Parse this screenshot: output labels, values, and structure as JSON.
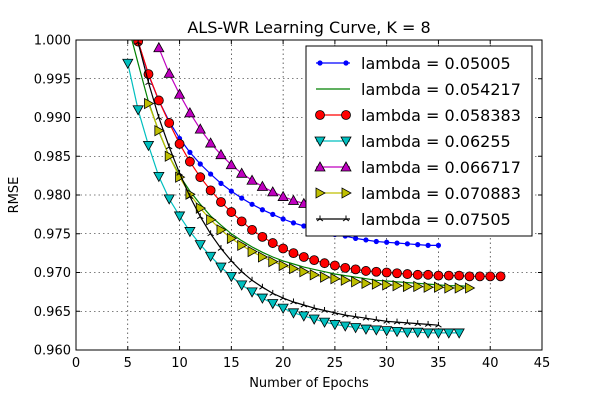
{
  "chart_data": {
    "type": "line",
    "title": "ALS-WR Learning Curve,  K = 8",
    "xlabel": "Number of Epochs",
    "ylabel": "RMSE",
    "xlim": [
      0,
      45
    ],
    "ylim": [
      0.96,
      1.0
    ],
    "xticks": [
      "0",
      "5",
      "10",
      "15",
      "20",
      "25",
      "30",
      "35",
      "40",
      "45"
    ],
    "yticks": [
      "0.960",
      "0.965",
      "0.970",
      "0.975",
      "0.980",
      "0.985",
      "0.990",
      "0.995",
      "1.000"
    ],
    "grid": true,
    "legend_position": "top-right",
    "series": [
      {
        "name": "lambda = 0.05005",
        "color": "#0000ff",
        "marker": "dot",
        "x": [
          6,
          7,
          8,
          9,
          10,
          11,
          12,
          13,
          14,
          15,
          16,
          17,
          18,
          19,
          20,
          21,
          22,
          23,
          24,
          25,
          26,
          27,
          28,
          29,
          30,
          31,
          32,
          33,
          34,
          35
        ],
        "y": [
          0.9998,
          0.9955,
          0.9922,
          0.9895,
          0.9873,
          0.9855,
          0.984,
          0.9827,
          0.9815,
          0.9805,
          0.9796,
          0.9788,
          0.9781,
          0.9775,
          0.9769,
          0.9764,
          0.976,
          0.9756,
          0.9752,
          0.9749,
          0.9747,
          0.9744,
          0.9742,
          0.974,
          0.9739,
          0.9738,
          0.9737,
          0.9736,
          0.9735,
          0.9735
        ]
      },
      {
        "name": "lambda = 0.054217",
        "color": "#008000",
        "marker": "none",
        "x": [
          5,
          6,
          7,
          8,
          9,
          10,
          11,
          12,
          13,
          14,
          15,
          16,
          17,
          18,
          19,
          20,
          21,
          22,
          23,
          24,
          25,
          26,
          27,
          28,
          29,
          30,
          31,
          32,
          33,
          34,
          35,
          36,
          37,
          38
        ],
        "y": [
          1.002,
          0.997,
          0.992,
          0.9882,
          0.985,
          0.9825,
          0.9805,
          0.9788,
          0.9773,
          0.9761,
          0.975,
          0.9741,
          0.9733,
          0.9726,
          0.972,
          0.9715,
          0.9711,
          0.9707,
          0.9704,
          0.9701,
          0.9698,
          0.9696,
          0.9694,
          0.9692,
          0.969,
          0.9689,
          0.9688,
          0.9687,
          0.9686,
          0.9685,
          0.9684,
          0.9683,
          0.9683,
          0.9682
        ]
      },
      {
        "name": "lambda = 0.058383",
        "color": "#ff0000",
        "marker": "circle",
        "x": [
          6,
          7,
          8,
          9,
          10,
          11,
          12,
          13,
          14,
          15,
          16,
          17,
          18,
          19,
          20,
          21,
          22,
          23,
          24,
          25,
          26,
          27,
          28,
          29,
          30,
          31,
          32,
          33,
          34,
          35,
          36,
          37,
          38,
          39,
          40,
          41
        ],
        "y": [
          0.9998,
          0.9956,
          0.9922,
          0.9893,
          0.9866,
          0.9843,
          0.9823,
          0.9806,
          0.9791,
          0.9778,
          0.9766,
          0.9755,
          0.9746,
          0.9738,
          0.9731,
          0.9725,
          0.972,
          0.9716,
          0.9712,
          0.9709,
          0.9706,
          0.9704,
          0.9702,
          0.9701,
          0.97,
          0.9699,
          0.9698,
          0.9697,
          0.9697,
          0.9696,
          0.9696,
          0.9696,
          0.9695,
          0.9695,
          0.9695,
          0.9695
        ]
      },
      {
        "name": "lambda = 0.06255",
        "color": "#00bfbf",
        "marker": "triangle-down",
        "x": [
          5,
          6,
          7,
          8,
          9,
          10,
          11,
          12,
          13,
          14,
          15,
          16,
          17,
          18,
          19,
          20,
          21,
          22,
          23,
          24,
          25,
          26,
          27,
          28,
          29,
          30,
          31,
          32,
          33,
          34,
          35,
          36,
          37
        ],
        "y": [
          0.997,
          0.991,
          0.9864,
          0.9824,
          0.9795,
          0.9773,
          0.9753,
          0.9736,
          0.9721,
          0.9707,
          0.9695,
          0.9684,
          0.9675,
          0.9667,
          0.966,
          0.9654,
          0.9648,
          0.9644,
          0.964,
          0.9636,
          0.9633,
          0.9631,
          0.9629,
          0.9627,
          0.9626,
          0.9625,
          0.9624,
          0.9623,
          0.9623,
          0.9622,
          0.9622,
          0.9622,
          0.9622
        ]
      },
      {
        "name": "lambda = 0.066717",
        "color": "#bf00bf",
        "marker": "triangle-up",
        "x": [
          8,
          9,
          10,
          11,
          12,
          13,
          14,
          15,
          16,
          17,
          18,
          19,
          20,
          21,
          22,
          23,
          24,
          25,
          26,
          27,
          28,
          29,
          30
        ],
        "y": [
          0.999,
          0.9957,
          0.993,
          0.9906,
          0.9885,
          0.9867,
          0.9852,
          0.9839,
          0.9828,
          0.9819,
          0.9811,
          0.9804,
          0.9798,
          0.9793,
          0.9789,
          0.9786,
          0.9783,
          0.9781,
          0.9779,
          0.9777,
          0.9776,
          0.9775,
          0.9774
        ]
      },
      {
        "name": "lambda = 0.070883",
        "color": "#bfbf00",
        "marker": "triangle-right",
        "x": [
          7,
          8,
          9,
          10,
          11,
          12,
          13,
          14,
          15,
          16,
          17,
          18,
          19,
          20,
          21,
          22,
          23,
          24,
          25,
          26,
          27,
          28,
          29,
          30,
          31,
          32,
          33,
          34,
          35,
          36,
          37,
          38
        ],
        "y": [
          0.9918,
          0.9883,
          0.985,
          0.9823,
          0.9801,
          0.9783,
          0.9768,
          0.9755,
          0.9744,
          0.9735,
          0.9727,
          0.972,
          0.9714,
          0.9709,
          0.9705,
          0.9701,
          0.9697,
          0.9694,
          0.9692,
          0.969,
          0.9688,
          0.9686,
          0.9685,
          0.9684,
          0.9683,
          0.9682,
          0.9682,
          0.9681,
          0.9681,
          0.968,
          0.968,
          0.968
        ]
      },
      {
        "name": "lambda = 0.07505",
        "color": "#000000",
        "marker": "tri",
        "x": [
          6,
          7,
          8,
          9,
          10,
          11,
          12,
          13,
          14,
          15,
          16,
          17,
          18,
          19,
          20,
          21,
          22,
          23,
          24,
          25,
          26,
          27,
          28,
          29,
          30,
          31,
          32,
          33,
          34,
          35
        ],
        "y": [
          0.9997,
          0.9945,
          0.99,
          0.9862,
          0.9828,
          0.9798,
          0.9772,
          0.975,
          0.9731,
          0.9715,
          0.9701,
          0.969,
          0.9681,
          0.9673,
          0.9667,
          0.9662,
          0.9658,
          0.9654,
          0.9651,
          0.9648,
          0.9645,
          0.9643,
          0.9641,
          0.9639,
          0.9637,
          0.9636,
          0.9635,
          0.9634,
          0.9633,
          0.9632
        ]
      }
    ]
  }
}
